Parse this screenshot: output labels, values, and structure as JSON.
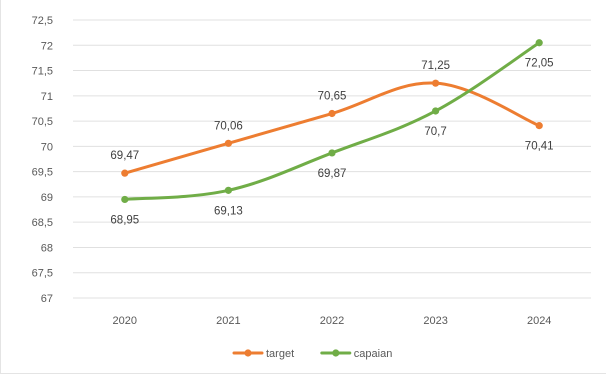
{
  "chart_data": {
    "type": "line",
    "categories": [
      "2020",
      "2021",
      "2022",
      "2023",
      "2024"
    ],
    "series": [
      {
        "name": "target",
        "color": "#ED7D31",
        "values": [
          69.47,
          70.06,
          70.65,
          71.25,
          70.41
        ],
        "labels": [
          "69,47",
          "70,06",
          "70,65",
          "71,25",
          "70,41"
        ],
        "label_placement": [
          "above",
          "above",
          "above",
          "above",
          "below"
        ]
      },
      {
        "name": "capaian",
        "color": "#70AD47",
        "values": [
          68.95,
          69.13,
          69.87,
          70.7,
          72.05
        ],
        "labels": [
          "68,95",
          "69,13",
          "69,87",
          "70,7",
          "72,05"
        ],
        "label_placement": [
          "below",
          "below",
          "below",
          "below",
          "below"
        ]
      }
    ],
    "ylim": [
      67,
      72.5
    ],
    "yticks": [
      67,
      67.5,
      68,
      68.5,
      69,
      69.5,
      70,
      70.5,
      71,
      71.5,
      72,
      72.5
    ],
    "ytick_labels": [
      "67",
      "67,5",
      "68",
      "68,5",
      "69",
      "69,5",
      "70",
      "70,5",
      "71",
      "71,5",
      "72",
      "72,5"
    ],
    "grid": true,
    "legend_position": "bottom",
    "title": "",
    "xlabel": "",
    "ylabel": ""
  }
}
